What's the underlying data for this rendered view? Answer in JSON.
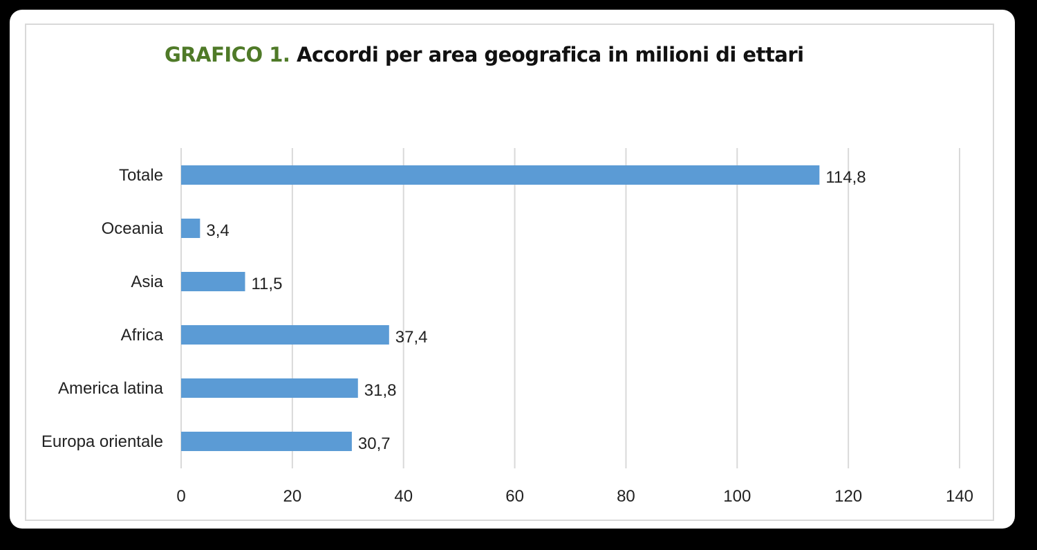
{
  "chart_data": {
    "type": "bar",
    "orientation": "horizontal",
    "title_prefix": "GRAFICO 1.",
    "title": "Accordi per area geografica in milioni di ettari",
    "xlabel": "",
    "ylabel": "",
    "categories": [
      "Totale",
      "Oceania",
      "Asia",
      "Africa",
      "America latina",
      "Europa orientale"
    ],
    "values": [
      114.8,
      3.4,
      11.5,
      37.4,
      31.8,
      30.7
    ],
    "value_labels": [
      "114,8",
      "3,4",
      "11,5",
      "37,4",
      "31,8",
      "30,7"
    ],
    "xlim": [
      0,
      140
    ],
    "xticks": [
      0,
      20,
      40,
      60,
      80,
      100,
      120,
      140
    ],
    "grid": "vertical",
    "legend": "none",
    "bar_color": "#5b9bd5",
    "title_prefix_color": "#4f7a28"
  }
}
